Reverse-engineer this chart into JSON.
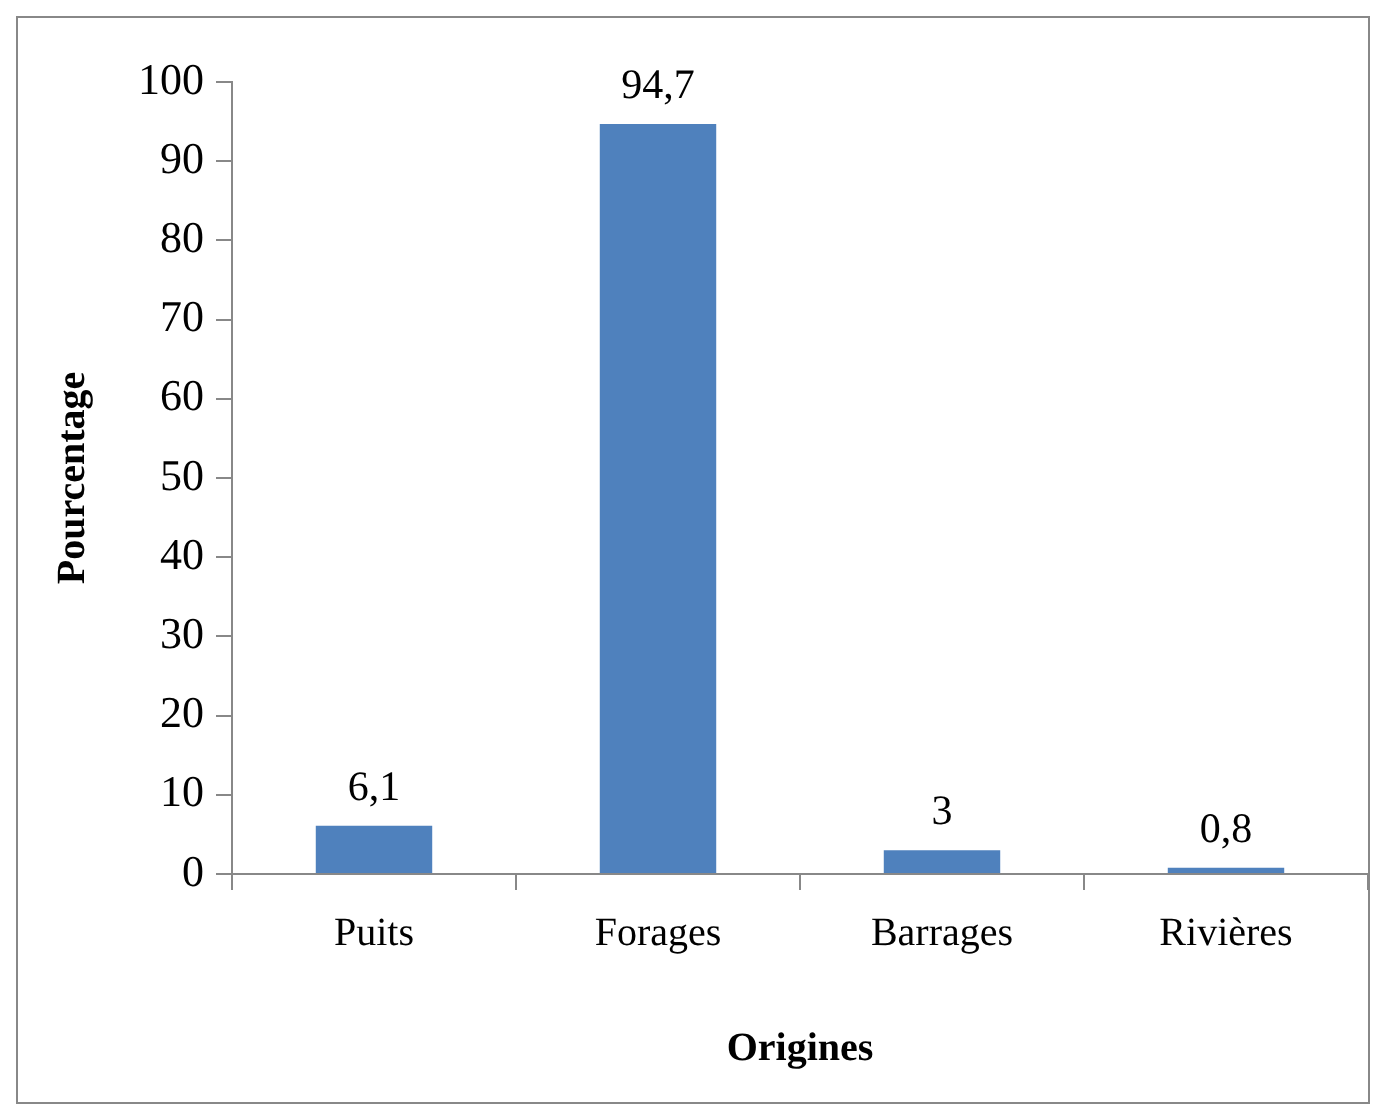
{
  "chart_data": {
    "type": "bar",
    "xlabel": "Origines",
    "ylabel": "Pourcentage",
    "categories": [
      "Puits",
      "Forages",
      "Barrages",
      "Rivières"
    ],
    "values": [
      6.1,
      94.7,
      3,
      0.8
    ],
    "value_labels": [
      "6,1",
      "94,7",
      "3",
      "0,8"
    ],
    "color": "#4f81bd",
    "ylim": [
      0,
      100
    ],
    "yticks": [
      0,
      10,
      20,
      30,
      40,
      50,
      60,
      70,
      80,
      90,
      100
    ],
    "grid": false,
    "legend": false
  }
}
